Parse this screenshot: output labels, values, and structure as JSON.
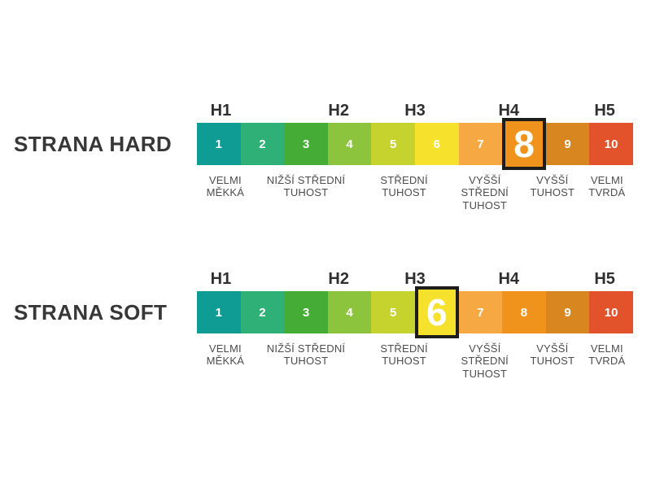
{
  "page": {
    "background_color": "#ffffff"
  },
  "scale": {
    "h_labels": [
      "H1",
      "H2",
      "H3",
      "H4",
      "H5"
    ],
    "cells": [
      {
        "value": "1",
        "color": "#0e9c94"
      },
      {
        "value": "2",
        "color": "#2fb077"
      },
      {
        "value": "3",
        "color": "#45ac35"
      },
      {
        "value": "4",
        "color": "#8cc43e"
      },
      {
        "value": "5",
        "color": "#c6d22e"
      },
      {
        "value": "6",
        "color": "#f6e12c"
      },
      {
        "value": "7",
        "color": "#f6a942"
      },
      {
        "value": "8",
        "color": "#f0931d"
      },
      {
        "value": "9",
        "color": "#d8861f"
      },
      {
        "value": "10",
        "color": "#e2532c"
      }
    ],
    "category_labels": [
      "VELMI\nMĚKKÁ",
      "NIŽŠÍ STŘEDNÍ\nTUHOST",
      "STŘEDNÍ\nTUHOST",
      "VYŠŠÍ\nSTŘEDNÍ\nTUHOST",
      "VYŠŠÍ\nTUHOST",
      "VELMI\nTVRDÁ"
    ],
    "highlight_border_color": "#1d1d1b"
  },
  "sections": [
    {
      "title": "STRANA HARD",
      "selected_value": "8"
    },
    {
      "title": "STRANA SOFT",
      "selected_value": "6"
    }
  ]
}
